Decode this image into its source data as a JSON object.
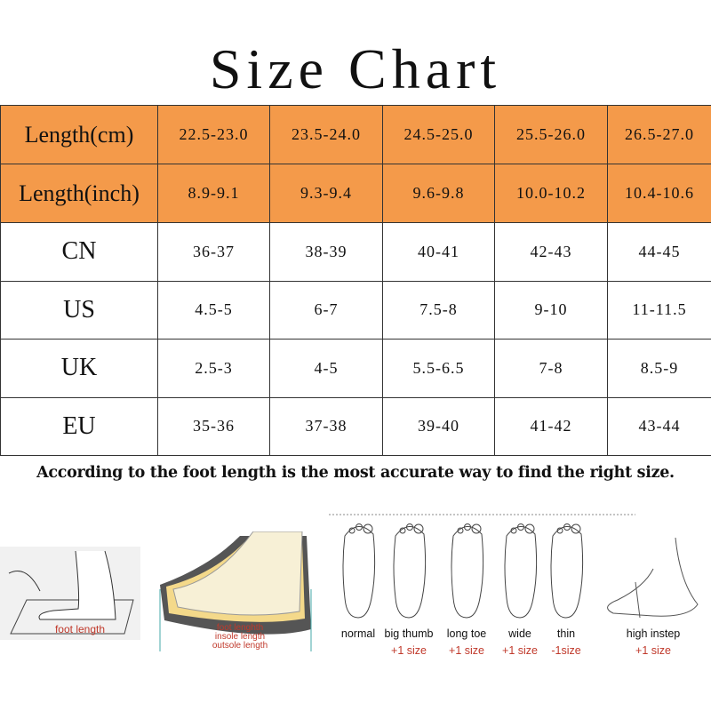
{
  "title": "Size Chart",
  "table": {
    "header_rows": [
      {
        "label": "Length(cm)",
        "values": [
          "22.5-23.0",
          "23.5-24.0",
          "24.5-25.0",
          "25.5-26.0",
          "26.5-27.0"
        ]
      },
      {
        "label": "Length(inch)",
        "values": [
          "8.9-9.1",
          "9.3-9.4",
          "9.6-9.8",
          "10.0-10.2",
          "10.4-10.6"
        ]
      }
    ],
    "rows": [
      {
        "label": "CN",
        "values": [
          "36-37",
          "38-39",
          "40-41",
          "42-43",
          "44-45"
        ]
      },
      {
        "label": "US",
        "values": [
          "4.5-5",
          "6-7",
          "7.5-8",
          "9-10",
          "11-11.5"
        ]
      },
      {
        "label": "UK",
        "values": [
          "2.5-3",
          "4-5",
          "5.5-6.5",
          "7-8",
          "8.5-9"
        ]
      },
      {
        "label": "EU",
        "values": [
          "35-36",
          "37-38",
          "39-40",
          "41-42",
          "43-44"
        ]
      }
    ]
  },
  "note": "According to the foot length is the most  accurate way to find the right size.",
  "illustrations": {
    "measure": "foot length",
    "shoe": [
      "foot lenghth",
      "insole length",
      "outsole length"
    ],
    "feet": [
      {
        "name": "normal",
        "adj": ""
      },
      {
        "name": "big thumb",
        "adj": "+1 size"
      },
      {
        "name": "long toe",
        "adj": "+1 size"
      },
      {
        "name": "wide",
        "adj": "+1 size"
      },
      {
        "name": "thin",
        "adj": "-1size"
      },
      {
        "name": "high instep",
        "adj": "+1 size"
      }
    ]
  },
  "colors": {
    "header": "#F49A4A",
    "accent_text": "#c0392b"
  }
}
